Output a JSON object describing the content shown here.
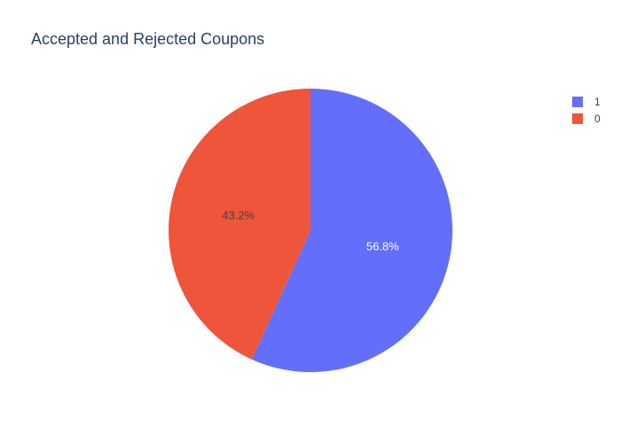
{
  "chart_data": {
    "type": "pie",
    "title": "Accepted and Rejected Coupons",
    "slices": [
      {
        "label": "1",
        "percent": 56.8,
        "percent_text": "56.8%",
        "color": "#636efa",
        "text_color": "#ffffff"
      },
      {
        "label": "0",
        "percent": 43.2,
        "percent_text": "43.2%",
        "color": "#ef553b",
        "text_color": "#444444"
      }
    ],
    "start_angle_deg": 90,
    "direction": "clockwise",
    "legend_position": "top-right"
  }
}
